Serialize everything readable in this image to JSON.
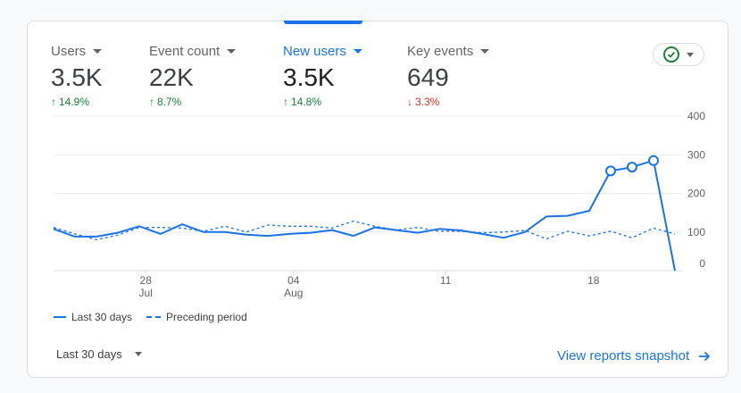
{
  "metrics": [
    {
      "label": "Users",
      "value": "3.5K",
      "change": "14.9%",
      "direction": "up",
      "active": false
    },
    {
      "label": "Event count",
      "value": "22K",
      "change": "8.7%",
      "direction": "up",
      "active": false
    },
    {
      "label": "New users",
      "value": "3.5K",
      "change": "14.8%",
      "direction": "up",
      "active": true
    },
    {
      "label": "Key events",
      "value": "649",
      "change": "3.3%",
      "direction": "down",
      "active": false
    }
  ],
  "status_button": {
    "icon": "check-circle-icon",
    "dropdown_icon": "chevron-down-icon"
  },
  "chart_data": {
    "type": "line",
    "x_tick_labels": [
      {
        "day": "28",
        "month": "Jul"
      },
      {
        "day": "04",
        "month": "Aug"
      },
      {
        "day": "11",
        "month": ""
      },
      {
        "day": "18",
        "month": ""
      }
    ],
    "y_ticks": [
      0,
      100,
      200,
      300,
      400
    ],
    "ylim": [
      0,
      400
    ],
    "grid": true,
    "series": [
      {
        "name": "Last 30 days",
        "style": "solid",
        "color": "#1a73e8",
        "values": [
          108,
          88,
          88,
          98,
          115,
          95,
          120,
          100,
          100,
          93,
          90,
          95,
          98,
          105,
          90,
          112,
          105,
          98,
          108,
          104,
          95,
          85,
          100,
          140,
          142,
          155,
          258,
          268,
          285,
          0
        ]
      },
      {
        "name": "Preceding period",
        "style": "dashed",
        "color": "#1a73e8",
        "values": [
          112,
          95,
          80,
          92,
          112,
          112,
          110,
          102,
          115,
          100,
          118,
          115,
          115,
          110,
          128,
          115,
          105,
          112,
          102,
          102,
          98,
          100,
          104,
          82,
          102,
          90,
          102,
          85,
          110,
          95
        ]
      }
    ],
    "highlighted_points": [
      26,
      27,
      28
    ]
  },
  "legend": [
    {
      "label": "Last 30 days",
      "style": "solid"
    },
    {
      "label": "Preceding period",
      "style": "dashed"
    }
  ],
  "footer": {
    "date_range": "Last 30 days",
    "link_label": "View reports snapshot",
    "link_icon": "arrow-right-icon"
  }
}
